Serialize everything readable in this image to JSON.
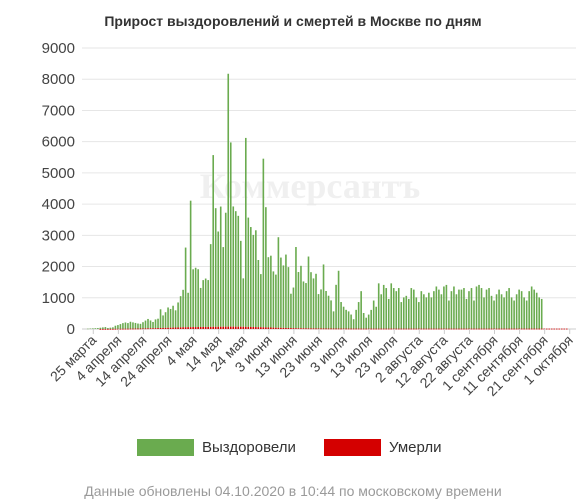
{
  "title": "Прирост выздоровлений и смертей в Москве по дням",
  "watermark": "Коммерсантъ",
  "footer": "Данные обновлены 04.10.2020 в 10:44 по московскому времени",
  "colors": {
    "recovered": "#6aab4f",
    "died": "#d40000",
    "grid": "#e6e6e6",
    "axis": "#cccccc"
  },
  "chart_data": {
    "type": "bar",
    "stacked": true,
    "title": "Прирост выздоровлений и смертей в Москве по дням",
    "xlabel": "",
    "ylabel": "",
    "ylim": [
      0,
      9000
    ],
    "yticks": [
      0,
      1000,
      2000,
      3000,
      4000,
      5000,
      6000,
      7000,
      8000,
      9000
    ],
    "grid": true,
    "legend_position": "bottom",
    "x_start": "2020-03-21",
    "x_end": "2020-10-03",
    "x_tick_dates": [
      "2020-03-25",
      "2020-04-04",
      "2020-04-14",
      "2020-04-24",
      "2020-05-04",
      "2020-05-14",
      "2020-05-24",
      "2020-06-03",
      "2020-06-13",
      "2020-06-23",
      "2020-07-03",
      "2020-07-13",
      "2020-07-23",
      "2020-08-02",
      "2020-08-12",
      "2020-08-22",
      "2020-09-01",
      "2020-09-11",
      "2020-09-21",
      "2020-10-01"
    ],
    "x_tick_labels": [
      "25 марта",
      "4 апреля",
      "14 апреля",
      "24 апреля",
      "4 мая",
      "14 мая",
      "24 мая",
      "3 июня",
      "13 июня",
      "23 июня",
      "3 июля",
      "13 июля",
      "23 июля",
      "2 августа",
      "12 августа",
      "22 августа",
      "1 сентября",
      "11 сентября",
      "21 сентября",
      "1 октября"
    ],
    "series": [
      {
        "name": "Выздоровели",
        "color": "#6aab4f",
        "values": [
          0,
          0,
          10,
          15,
          20,
          25,
          30,
          40,
          50,
          60,
          30,
          40,
          50,
          100,
          120,
          150,
          180,
          200,
          180,
          220,
          200,
          180,
          160,
          150,
          200,
          250,
          300,
          250,
          200,
          280,
          300,
          600,
          400,
          500,
          650,
          600,
          700,
          550,
          800,
          1000,
          1200,
          2550,
          1100,
          4050,
          1850,
          1900,
          1850,
          1250,
          1500,
          1550,
          1500,
          2650,
          5500,
          3800,
          3050,
          3850,
          2550,
          3650,
          8100,
          5900,
          3850,
          3700,
          3550,
          2750,
          1550,
          6050,
          3500,
          3200,
          2950,
          3100,
          2150,
          1700,
          5400,
          3850,
          2250,
          2300,
          1800,
          1700,
          2900,
          2250,
          2000,
          2350,
          1950,
          1100,
          1300,
          2600,
          1800,
          2000,
          1500,
          1450,
          2300,
          1800,
          1600,
          1750,
          1100,
          1250,
          2050,
          1200,
          1050,
          900,
          550,
          1400,
          1850,
          850,
          700,
          600,
          550,
          450,
          300,
          600,
          850,
          1200,
          500,
          350,
          450,
          600,
          900,
          700,
          1450,
          1100,
          1400,
          1300,
          950,
          1450,
          1300,
          1200,
          1300,
          850,
          1000,
          1050,
          950,
          1300,
          1250,
          1000,
          850,
          1200,
          1100,
          1000,
          1150,
          1000,
          1200,
          1350,
          1250,
          1100,
          1350,
          1400,
          900,
          1200,
          1350,
          1100,
          1250,
          1250,
          1300,
          950,
          1200,
          1300,
          900,
          1350,
          1400,
          1300,
          1000,
          1250,
          1300,
          1050,
          900,
          1100,
          1250,
          1100,
          1000,
          1200,
          1300,
          1000,
          900,
          1100,
          1250,
          1200,
          1000,
          900,
          1200,
          1350,
          1250,
          1150,
          1000,
          950
        ],
        "_note": ""
      },
      {
        "name": "Умерли",
        "color": "#d40000",
        "values": [
          0,
          0,
          0,
          0,
          0,
          0,
          0,
          1,
          2,
          2,
          3,
          3,
          4,
          5,
          6,
          7,
          8,
          9,
          10,
          12,
          12,
          14,
          15,
          16,
          18,
          20,
          22,
          24,
          25,
          27,
          30,
          32,
          35,
          38,
          40,
          42,
          45,
          48,
          50,
          52,
          55,
          58,
          60,
          60,
          62,
          62,
          64,
          65,
          66,
          66,
          67,
          68,
          70,
          70,
          72,
          72,
          73,
          74,
          75,
          75,
          75,
          74,
          74,
          73,
          72,
          70,
          68,
          66,
          64,
          62,
          60,
          58,
          55,
          52,
          50,
          48,
          45,
          42,
          40,
          38,
          36,
          34,
          32,
          30,
          28,
          26,
          25,
          24,
          23,
          22,
          21,
          20,
          20,
          19,
          18,
          18,
          17,
          17,
          16,
          16,
          15,
          15,
          15,
          14,
          14,
          14,
          14,
          13,
          13,
          13,
          13,
          12,
          12,
          12,
          12,
          12,
          12,
          12,
          12,
          12,
          12,
          12,
          12,
          12,
          12,
          12,
          12,
          12,
          12,
          12,
          12,
          12,
          12,
          12,
          12,
          12,
          12,
          12,
          12,
          12,
          12,
          12,
          12,
          12,
          12,
          12,
          12,
          12,
          12,
          12,
          12,
          12,
          12,
          12,
          12,
          12,
          12,
          12,
          12,
          12,
          12,
          12,
          12,
          12,
          12,
          12,
          12,
          12,
          12,
          12,
          12,
          12,
          12,
          12,
          12,
          12,
          12,
          12,
          12,
          12,
          12,
          12,
          12,
          12,
          12,
          12,
          12,
          12,
          12,
          12,
          12,
          12,
          12,
          12
        ]
      }
    ]
  }
}
